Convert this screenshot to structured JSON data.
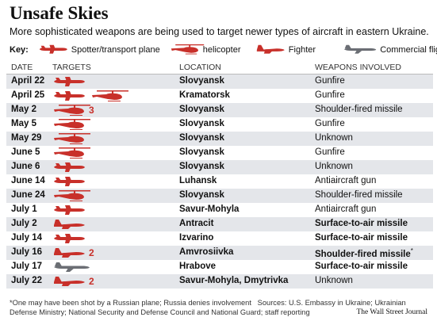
{
  "header": {
    "title": "Unsafe Skies",
    "subtitle": "More sophisticated weapons are being used to target newer types of aircraft in eastern Ukraine."
  },
  "key": {
    "label": "Key:",
    "items": [
      {
        "icon": "plane",
        "label": "Spotter/transport plane"
      },
      {
        "icon": "helicopter",
        "label": "helicopter"
      },
      {
        "icon": "fighter",
        "label": "Fighter"
      },
      {
        "icon": "commercial",
        "label": "Commercial flight"
      }
    ]
  },
  "table": {
    "columns": [
      "DATE",
      "TARGETS",
      "LOCATION",
      "WEAPONS INVOLVED"
    ],
    "rows": [
      {
        "date": "April 22",
        "targets": [
          {
            "icon": "plane"
          }
        ],
        "location": "Slovyansk",
        "weapon": "Gunfire",
        "bold": false
      },
      {
        "date": "April 25",
        "targets": [
          {
            "icon": "plane"
          },
          {
            "icon": "helicopter"
          }
        ],
        "location": "Kramatorsk",
        "weapon": "Gunfire",
        "bold": false
      },
      {
        "date": "May 2",
        "targets": [
          {
            "icon": "helicopter",
            "count": 3
          }
        ],
        "location": "Slovyansk",
        "weapon": "Shoulder-fired missile",
        "bold": false
      },
      {
        "date": "May 5",
        "targets": [
          {
            "icon": "helicopter"
          }
        ],
        "location": "Slovyansk",
        "weapon": "Gunfire",
        "bold": false
      },
      {
        "date": "May 29",
        "targets": [
          {
            "icon": "helicopter"
          }
        ],
        "location": "Slovyansk",
        "weapon": "Unknown",
        "bold": false
      },
      {
        "date": "June 5",
        "targets": [
          {
            "icon": "helicopter"
          }
        ],
        "location": "Slovyansk",
        "weapon": "Gunfire",
        "bold": false
      },
      {
        "date": "June 6",
        "targets": [
          {
            "icon": "plane"
          }
        ],
        "location": "Slovyansk",
        "weapon": "Unknown",
        "bold": false
      },
      {
        "date": "June 14",
        "targets": [
          {
            "icon": "plane"
          }
        ],
        "location": "Luhansk",
        "weapon": "Antiaircraft gun",
        "bold": false
      },
      {
        "date": "June 24",
        "targets": [
          {
            "icon": "helicopter"
          }
        ],
        "location": "Slovyansk",
        "weapon": "Shoulder-fired missile",
        "bold": false
      },
      {
        "date": "July 1",
        "targets": [
          {
            "icon": "plane"
          }
        ],
        "location": "Savur-Mohyla",
        "weapon": "Antiaircraft gun",
        "bold": false
      },
      {
        "date": "July 2",
        "targets": [
          {
            "icon": "fighter"
          }
        ],
        "location": "Antracit",
        "weapon": "Surface-to-air missile",
        "bold": true
      },
      {
        "date": "July 14",
        "targets": [
          {
            "icon": "plane"
          }
        ],
        "location": "Izvarino",
        "weapon": "Surface-to-air missile",
        "bold": true
      },
      {
        "date": "July 16",
        "targets": [
          {
            "icon": "fighter",
            "count": 2
          }
        ],
        "location": "Amvrosiivka",
        "weapon": "Shoulder-fired missile",
        "weapon_note": "*",
        "bold": true
      },
      {
        "date": "July 17",
        "targets": [
          {
            "icon": "commercial"
          }
        ],
        "location": "Hrabove",
        "weapon": "Surface-to-air missile",
        "bold": true
      },
      {
        "date": "July 22",
        "targets": [
          {
            "icon": "fighter",
            "count": 2
          }
        ],
        "location": "Savur-Mohyla, Dmytrivka",
        "weapon": "Unknown",
        "bold": false
      }
    ]
  },
  "footer": {
    "note": "*One may have been shot by a Russian plane; Russia denies involvement",
    "sources": "Sources: U.S. Embassy in Ukraine; Ukrainian Defense Ministry; National Security and Defense Council and National Guard; staff reporting",
    "credit": "The Wall Street Journal"
  }
}
